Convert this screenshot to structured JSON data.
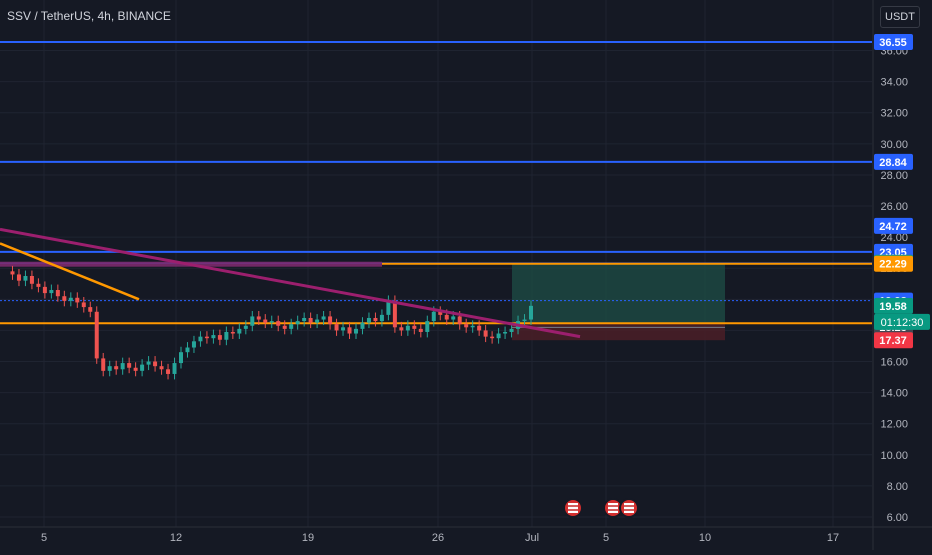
{
  "header": {
    "title": "SSV / TetherUS, 4h, BINANCE",
    "currency": "USDT"
  },
  "colors": {
    "background": "#151924",
    "grid": "#1f2431",
    "text": "#b2b5be",
    "up": "#26a69a",
    "down": "#ef5350",
    "blue_line": "#2962ff",
    "orange_line": "#ff9800",
    "purple_line": "#9c1f6e",
    "target_zone": "#1e4d45",
    "stop_zone": "#4a1e27",
    "current_price": "#089981"
  },
  "chart_data": {
    "type": "candlestick",
    "title": "SSV / TetherUS, 4h, BINANCE",
    "x_tick_labels": [
      "5",
      "12",
      "19",
      "26",
      "Jul",
      "5",
      "10",
      "17"
    ],
    "y_tick_labels": [
      "6.00",
      "8.00",
      "10.00",
      "12.00",
      "14.00",
      "16.00",
      "18.00",
      "20.00",
      "22.00",
      "24.00",
      "26.00",
      "28.00",
      "30.00",
      "32.00",
      "34.00",
      "36.00"
    ],
    "ylim": [
      5.3,
      39.2
    ],
    "grid": true,
    "horizontal_levels": [
      {
        "value": 36.55,
        "label": "36.55",
        "color": "#2962ff"
      },
      {
        "value": 28.84,
        "label": "28.84",
        "color": "#2962ff"
      },
      {
        "value": 24.72,
        "label": "24.72",
        "color": "#2962ff"
      },
      {
        "value": 23.05,
        "label": "23.05",
        "color": "#2962ff"
      },
      {
        "value": 22.35,
        "label": "22.35",
        "color": "#089981"
      },
      {
        "value": 22.29,
        "label": "22.29",
        "color": "#ff9800"
      },
      {
        "value": 19.92,
        "label": "19.92",
        "color": "#2962ff"
      },
      {
        "value": 19.58,
        "label": "19.58",
        "color": "#089981"
      },
      {
        "value": 18.46,
        "label": "18.46",
        "color": "#ff9800"
      },
      {
        "value": 18.23,
        "label": "18.23",
        "color": "#434651"
      },
      {
        "value": 17.37,
        "label": "17.37",
        "color": "#f23645"
      }
    ],
    "countdown_label": "01:12:30",
    "price_series": [
      21.8,
      21.6,
      21.2,
      21.5,
      21.0,
      20.8,
      20.4,
      20.6,
      20.2,
      19.9,
      20.1,
      19.8,
      19.5,
      19.2,
      16.2,
      15.4,
      15.7,
      15.5,
      15.9,
      15.6,
      15.4,
      15.8,
      16.0,
      15.7,
      15.5,
      15.2,
      15.9,
      16.6,
      16.9,
      17.3,
      17.6,
      17.5,
      17.7,
      17.4,
      17.9,
      17.8,
      18.1,
      18.3,
      18.9,
      18.7,
      18.5,
      18.6,
      18.3,
      18.1,
      18.4,
      18.6,
      18.8,
      18.5,
      18.7,
      18.9,
      18.4,
      18.0,
      18.2,
      17.8,
      18.1,
      18.5,
      18.8,
      18.6,
      19.0,
      19.9,
      18.2,
      18.0,
      18.3,
      18.1,
      17.9,
      18.6,
      19.2,
      19.0,
      18.7,
      18.9,
      18.4,
      18.2,
      18.3,
      18.0,
      17.6,
      17.5,
      17.8,
      17.9,
      18.1,
      18.6,
      18.7,
      19.58
    ]
  },
  "events": [
    "flag-icon",
    "flag-icon",
    "flag-icon"
  ]
}
